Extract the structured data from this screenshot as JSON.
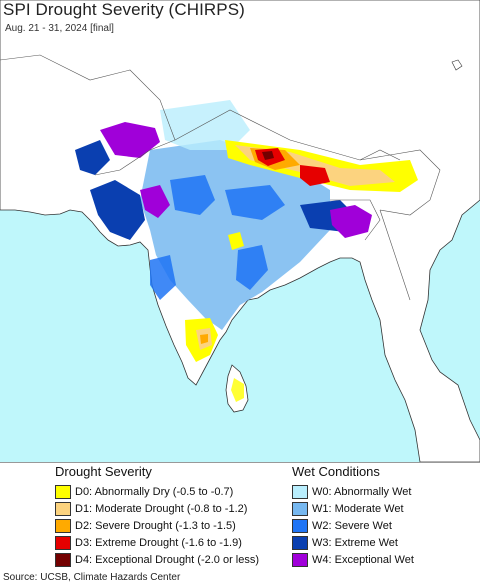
{
  "title": "SPI Drought Severity (CHIRPS)",
  "subtitle": "Aug. 21 - 31, 2024 [final]",
  "colors": {
    "ocean": "#bff7fb",
    "land": "#ffffff",
    "border": "#333333",
    "D0": "#ffff00",
    "D1": "#fcd37f",
    "D2": "#ffaa00",
    "D3": "#e60000",
    "D4": "#730000",
    "W0": "#b9eefd",
    "W1": "#77b8f0",
    "W2": "#1f74f5",
    "W3": "#0a3fb0",
    "W4": "#a000d9"
  },
  "legend": {
    "drought_heading": "Drought Severity",
    "wet_heading": "Wet Conditions",
    "drought": [
      {
        "key": "D0",
        "label": "D0: Abnormally Dry (-0.5 to -0.7)",
        "color": "#ffff00"
      },
      {
        "key": "D1",
        "label": "D1: Moderate Drought (-0.8 to -1.2)",
        "color": "#fcd37f"
      },
      {
        "key": "D2",
        "label": "D2: Severe Drought (-1.3 to -1.5)",
        "color": "#ffaa00"
      },
      {
        "key": "D3",
        "label": "D3: Extreme Drought (-1.6 to -1.9)",
        "color": "#e60000"
      },
      {
        "key": "D4",
        "label": "D4: Exceptional Drought (-2.0 or less)",
        "color": "#730000"
      }
    ],
    "wet": [
      {
        "key": "W0",
        "label": "W0: Abnormally Wet",
        "color": "#b9eefd"
      },
      {
        "key": "W1",
        "label": "W1: Moderate Wet",
        "color": "#77b8f0"
      },
      {
        "key": "W2",
        "label": "W2: Severe Wet",
        "color": "#1f74f5"
      },
      {
        "key": "W3",
        "label": "W3: Extreme Wet",
        "color": "#0a3fb0"
      },
      {
        "key": "W4",
        "label": "W4: Exceptional Wet",
        "color": "#a000d9"
      }
    ]
  },
  "source": "Source: UCSB, Climate Hazards Center"
}
